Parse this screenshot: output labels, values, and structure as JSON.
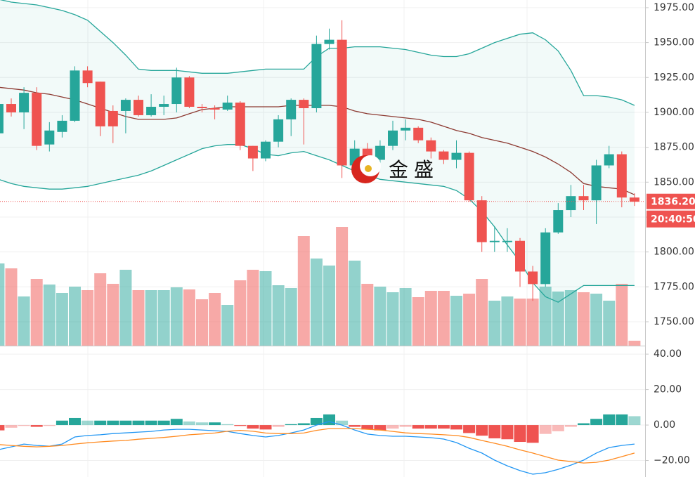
{
  "chart_data": {
    "type": "candlestick",
    "candles": {
      "open": [
        1885,
        1906,
        1900,
        1914,
        1877,
        1886,
        1894,
        1930,
        1922,
        1901,
        1901,
        1909,
        1898,
        1904,
        1906,
        1925,
        1904,
        1903,
        1902,
        1907,
        1876,
        1867,
        1879,
        1895,
        1909,
        1903,
        1949,
        1952,
        1862,
        1874,
        1866,
        1876,
        1887,
        1889,
        1880,
        1872,
        1866,
        1871,
        1837,
        1807,
        1807,
        1808,
        1786,
        1777,
        1814,
        1830,
        1840,
        1837,
        1862,
        1870,
        1839
      ],
      "high": [
        1910,
        1910,
        1918,
        1918,
        1893,
        1898,
        1933,
        1933,
        1922,
        1905,
        1910,
        1912,
        1913,
        1912,
        1932,
        1926,
        1906,
        1905,
        1912,
        1908,
        1876,
        1880,
        1898,
        1910,
        1910,
        1955,
        1960,
        1966,
        1880,
        1878,
        1880,
        1894,
        1895,
        1890,
        1882,
        1873,
        1880,
        1872,
        1840,
        1818,
        1817,
        1810,
        1790,
        1817,
        1835,
        1848,
        1848,
        1866,
        1876,
        1872,
        1842
      ],
      "low": [
        1880,
        1897,
        1888,
        1873,
        1872,
        1882,
        1893,
        1918,
        1883,
        1878,
        1885,
        1897,
        1897,
        1898,
        1900,
        1903,
        1900,
        1895,
        1901,
        1873,
        1858,
        1865,
        1875,
        1883,
        1877,
        1900,
        1945,
        1853,
        1855,
        1860,
        1860,
        1873,
        1880,
        1878,
        1867,
        1863,
        1860,
        1836,
        1800,
        1800,
        1800,
        1775,
        1765,
        1775,
        1813,
        1825,
        1830,
        1820,
        1860,
        1832,
        1833
      ],
      "close": [
        1906,
        1900,
        1914,
        1876,
        1887,
        1894,
        1930,
        1921,
        1890,
        1890,
        1909,
        1898,
        1904,
        1906,
        1925,
        1904,
        1903,
        1902,
        1907,
        1876,
        1867,
        1879,
        1895,
        1909,
        1903,
        1949,
        1952,
        1862,
        1874,
        1869,
        1876,
        1887,
        1889,
        1880,
        1872,
        1866,
        1871,
        1837,
        1807,
        1808,
        1808,
        1786,
        1777,
        1814,
        1830,
        1840,
        1837,
        1862,
        1870,
        1839,
        1836
      ]
    },
    "bollinger": {
      "upper": [
        1981,
        1979,
        1978,
        1977,
        1975,
        1973,
        1970,
        1966,
        1958,
        1950,
        1941,
        1931,
        1930,
        1930,
        1930,
        1929,
        1928,
        1928,
        1928,
        1929,
        1930,
        1931,
        1931,
        1931,
        1931,
        1940,
        1946,
        1946,
        1947,
        1947,
        1947,
        1946,
        1945,
        1943,
        1941,
        1940,
        1940,
        1942,
        1946,
        1950,
        1953,
        1956,
        1957,
        1952,
        1944,
        1930,
        1912,
        1912,
        1911,
        1909,
        1905
      ],
      "middle": [
        1918,
        1917,
        1916,
        1914,
        1913,
        1911,
        1909,
        1906,
        1903,
        1900,
        1897,
        1895,
        1895,
        1895,
        1896,
        1899,
        1902,
        1903,
        1904,
        1904,
        1904,
        1904,
        1904,
        1905,
        1905,
        1905,
        1905,
        1904,
        1901,
        1899,
        1898,
        1897,
        1896,
        1895,
        1893,
        1890,
        1887,
        1885,
        1882,
        1880,
        1878,
        1875,
        1872,
        1868,
        1863,
        1857,
        1849,
        1847,
        1846,
        1845,
        1841
      ],
      "lower": [
        1852,
        1849,
        1847,
        1846,
        1845,
        1845,
        1846,
        1847,
        1849,
        1851,
        1853,
        1855,
        1858,
        1862,
        1866,
        1870,
        1874,
        1876,
        1877,
        1877,
        1874,
        1870,
        1869,
        1871,
        1872,
        1869,
        1866,
        1862,
        1858,
        1855,
        1852,
        1851,
        1850,
        1849,
        1848,
        1847,
        1844,
        1838,
        1829,
        1818,
        1805,
        1793,
        1778,
        1768,
        1764,
        1770,
        1776,
        1776,
        1776,
        1776,
        1776
      ]
    },
    "volume": [
      117,
      110,
      70,
      95,
      87,
      75,
      84,
      79,
      103,
      88,
      108,
      79,
      79,
      79,
      83,
      80,
      66,
      75,
      58,
      93,
      108,
      106,
      86,
      82,
      156,
      124,
      114,
      169,
      121,
      88,
      84,
      76,
      82,
      69,
      78,
      78,
      71,
      74,
      95,
      64,
      70,
      67,
      67,
      84,
      77,
      79,
      76,
      74,
      64,
      88,
      7
    ],
    "macd": {
      "histogram": [
        -3,
        -1.5,
        -0.5,
        -1,
        -0.5,
        2.5,
        4,
        2.5,
        2.5,
        2.5,
        2.5,
        2.5,
        2.5,
        2.5,
        3.5,
        2,
        1.5,
        1.5,
        0.5,
        -0.5,
        -2,
        -2.5,
        -1,
        0.5,
        1,
        4,
        6,
        2.5,
        -1,
        -2.5,
        -3,
        -2,
        -1,
        -2,
        -2,
        -2,
        -2.5,
        -4.5,
        -6,
        -7.5,
        -8,
        -9.5,
        -10,
        -5,
        -3.5,
        -1,
        1,
        3.5,
        6,
        6,
        5
      ],
      "macd": [
        -13.9,
        -12.3,
        -10.7,
        -11.5,
        -11.9,
        -10.7,
        -6.7,
        -5.9,
        -5.5,
        -4.8,
        -4.4,
        -4,
        -3.6,
        -2.8,
        -2.4,
        -2.4,
        -2.8,
        -3.2,
        -3.6,
        -4.8,
        -5.9,
        -6.7,
        -5.9,
        -4.4,
        -2.8,
        0,
        2,
        0,
        -2.8,
        -5.1,
        -5.9,
        -6.3,
        -6.3,
        -6.7,
        -7.1,
        -7.9,
        -9.9,
        -13.1,
        -15.8,
        -19.8,
        -23,
        -25.7,
        -27.7,
        -26.9,
        -25,
        -22.6,
        -19.8,
        -15.8,
        -12.7,
        -11.5,
        -10.7
      ],
      "signal": [
        -11,
        -11.5,
        -12,
        -12.3,
        -12,
        -11.5,
        -10.7,
        -10,
        -9.5,
        -9,
        -8.7,
        -8,
        -7.5,
        -7,
        -6.3,
        -5.5,
        -5,
        -4.5,
        -3.5,
        -3,
        -3.5,
        -4.5,
        -4.8,
        -4.8,
        -4.5,
        -3,
        -2,
        -2,
        -2,
        -2.4,
        -2.8,
        -3.6,
        -4.4,
        -4.8,
        -5.1,
        -5.5,
        -5.9,
        -7,
        -8.7,
        -10.3,
        -12,
        -14,
        -15.8,
        -17.8,
        -19.8,
        -20.6,
        -21.4,
        -21,
        -19.8,
        -17.8,
        -15.8
      ]
    },
    "ylim": [
      1732.9,
      1980.5
    ],
    "yticks": [
      {
        "value": 1750,
        "label": "1750.00"
      },
      {
        "value": 1775,
        "label": "1775.00"
      },
      {
        "value": 1800,
        "label": "1800.00"
      },
      {
        "value": 1825,
        "label": "1825.00"
      },
      {
        "value": 1850,
        "label": "1850.00"
      },
      {
        "value": 1875,
        "label": "1875.00"
      },
      {
        "value": 1900,
        "label": "1900.00"
      },
      {
        "value": 1925,
        "label": "1925.00"
      },
      {
        "value": 1950,
        "label": "1950.00"
      },
      {
        "value": 1975,
        "label": "1975.00"
      }
    ],
    "macd_ylim": [
      -29.3,
      44.4
    ],
    "macd_yticks": [
      {
        "value": -20,
        "label": "−20.00"
      },
      {
        "value": 0,
        "label": "0.00"
      },
      {
        "value": 20,
        "label": "20.00"
      },
      {
        "value": 40,
        "label": "40.00"
      }
    ],
    "last_price": {
      "value": 1836.2,
      "label": "1836.20"
    },
    "time_label": "20:40:50",
    "watermark": "金盛",
    "colors": {
      "up": "#26a69a",
      "down": "#ef5350",
      "upper": "#26a69a",
      "middle": "#8d3a32",
      "lower": "#26a69a",
      "macd": "#2196f3",
      "signal": "#ff8a1f"
    }
  }
}
